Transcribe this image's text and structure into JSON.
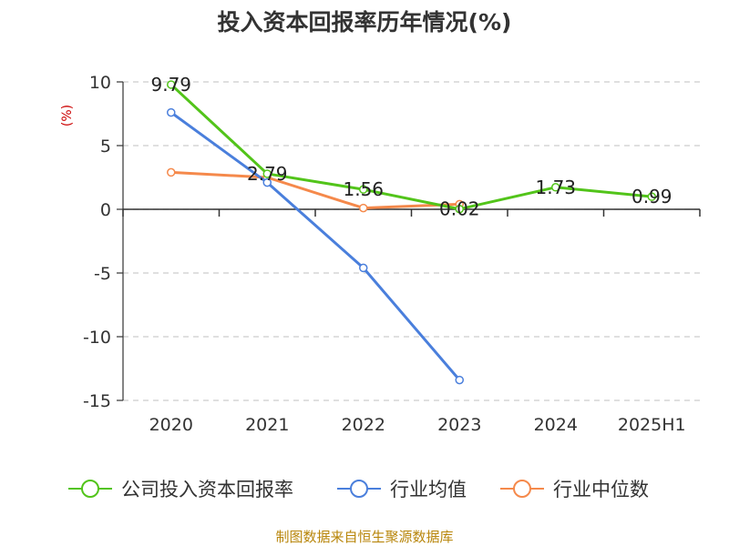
{
  "chart_data": {
    "type": "line",
    "title": "投入资本回报率历年情况(%)",
    "ylabel": "(%)",
    "xlabel": "",
    "categories": [
      "2020",
      "2021",
      "2022",
      "2023",
      "2024",
      "2025H1"
    ],
    "ylim": [
      -15,
      10
    ],
    "yticks": [
      10,
      5,
      0,
      -5,
      -10,
      -15
    ],
    "grid": true,
    "legend_position": "bottom",
    "series": [
      {
        "name": "公司投入资本回报率",
        "color": "#52c41a",
        "values": [
          9.79,
          2.79,
          1.56,
          0.02,
          1.73,
          0.99
        ],
        "labels": [
          "9.79",
          "2.79",
          "1.56",
          "0.02",
          "1.73",
          "0.99"
        ]
      },
      {
        "name": "行业均值",
        "color": "#4a7fdc",
        "values": [
          7.6,
          2.1,
          -4.6,
          -13.4,
          null,
          null
        ]
      },
      {
        "name": "行业中位数",
        "color": "#f5894b",
        "values": [
          2.9,
          2.5,
          0.1,
          0.4,
          null,
          null
        ]
      }
    ]
  },
  "source_text": "制图数据来自恒生聚源数据库"
}
